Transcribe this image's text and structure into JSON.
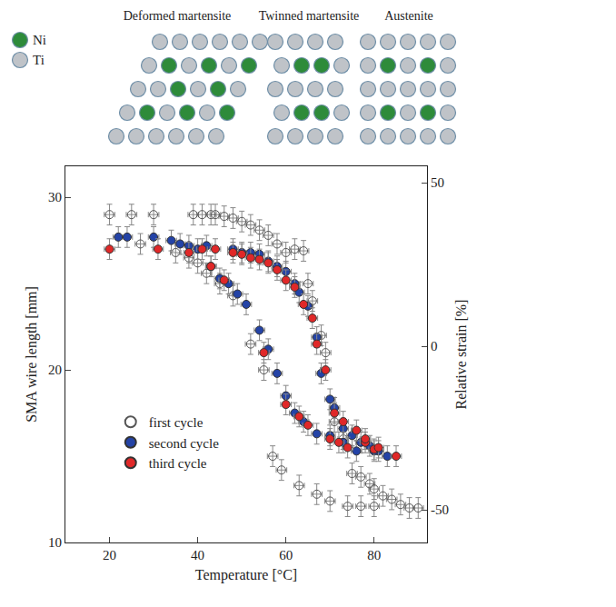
{
  "chart_data": {
    "type": "scatter",
    "x_label": "Temperature [°C]",
    "y_label": "SMA wire length [mm]",
    "y2_label": "Relative strain [%]",
    "xlim": [
      10,
      92
    ],
    "xticks": [
      20,
      40,
      60,
      80
    ],
    "ylim": [
      10,
      31.8
    ],
    "yticks": [
      10,
      20,
      30
    ],
    "y2lim": [
      -60,
      55
    ],
    "y2ticks": [
      -50,
      0,
      50
    ],
    "grid": false,
    "legend": "lower left",
    "series": [
      {
        "name": "first cycle",
        "color": "#555555",
        "marker": "open",
        "x_error": 1.2,
        "y_error": 0.6,
        "x": [
          20,
          25,
          27,
          30,
          35,
          38,
          40,
          42,
          45,
          48,
          52,
          55,
          57,
          59,
          63,
          67,
          70,
          74,
          77,
          80,
          39,
          41,
          43,
          44,
          46,
          48,
          50,
          52,
          54,
          56,
          58,
          60,
          62,
          64,
          65,
          66,
          68,
          69,
          71,
          73,
          75,
          77,
          79,
          80,
          82,
          84,
          86,
          88,
          90
        ],
        "values": [
          29,
          29,
          27.3,
          29,
          26.8,
          26.5,
          26.2,
          25.6,
          25,
          24.3,
          21.5,
          20,
          15,
          14.2,
          13.3,
          12.8,
          12.4,
          12.1,
          12.1,
          12.1,
          29,
          29,
          29,
          29,
          28.9,
          28.8,
          28.6,
          28.4,
          28.1,
          27.8,
          27.3,
          26.8,
          27,
          26.9,
          25,
          24,
          22,
          21,
          17,
          16,
          14,
          13.8,
          13.4,
          13.1,
          12.7,
          12.5,
          12.2,
          12,
          12
        ]
      },
      {
        "name": "second cycle",
        "color": "#2443a6",
        "marker": "filled",
        "x_error": 1.2,
        "y_error": 0.6,
        "x": [
          22,
          24,
          30,
          34,
          36,
          38,
          40,
          42,
          43,
          45,
          47,
          49,
          51,
          54,
          56,
          58,
          60,
          62,
          64,
          67,
          70,
          73,
          76,
          79,
          81,
          83,
          48,
          50,
          52,
          54,
          56,
          58,
          60,
          62,
          63,
          65,
          67,
          68,
          70,
          71,
          73,
          75,
          77,
          80
        ],
        "values": [
          27.7,
          27.7,
          27.7,
          27.5,
          27.3,
          27.2,
          27,
          27.2,
          26,
          25.3,
          25,
          24.4,
          23.8,
          22.3,
          21.2,
          19.8,
          18.5,
          17.5,
          17,
          16.3,
          16.2,
          15.8,
          15.3,
          15.6,
          15.3,
          15,
          27,
          26.8,
          26.8,
          26.7,
          26.3,
          26,
          25.7,
          25,
          24.5,
          23.7,
          21.9,
          19.8,
          18.3,
          17.8,
          16.6,
          16.2,
          15.8,
          15.3
        ]
      },
      {
        "name": "third cycle",
        "color": "#e02828",
        "marker": "filled",
        "x_error": 1.2,
        "y_error": 0.6,
        "x": [
          20,
          31,
          38,
          41,
          43,
          46,
          55,
          60,
          63,
          65,
          70,
          72,
          74,
          78,
          80,
          85,
          44,
          48,
          50,
          52,
          54,
          56,
          58,
          60,
          62,
          64,
          66,
          67,
          69,
          71,
          73,
          76,
          78,
          81
        ],
        "values": [
          27,
          27,
          26.8,
          27,
          26,
          25.2,
          21,
          18,
          17.3,
          16.8,
          16,
          15.8,
          15.5,
          15.8,
          15.4,
          15,
          27,
          26.8,
          26.7,
          26.5,
          26.4,
          26.2,
          25.8,
          25.2,
          24.8,
          23.8,
          23,
          21.5,
          20,
          17.5,
          17,
          16.5,
          16,
          15.5
        ]
      }
    ]
  },
  "diagram": {
    "panels": [
      "Deformed martensite",
      "Twinned martensite",
      "Austenite"
    ],
    "atoms": [
      {
        "label": "Ni",
        "color": "#2e8b3a"
      },
      {
        "label": "Ti",
        "color": "#bfc3c8"
      }
    ]
  }
}
